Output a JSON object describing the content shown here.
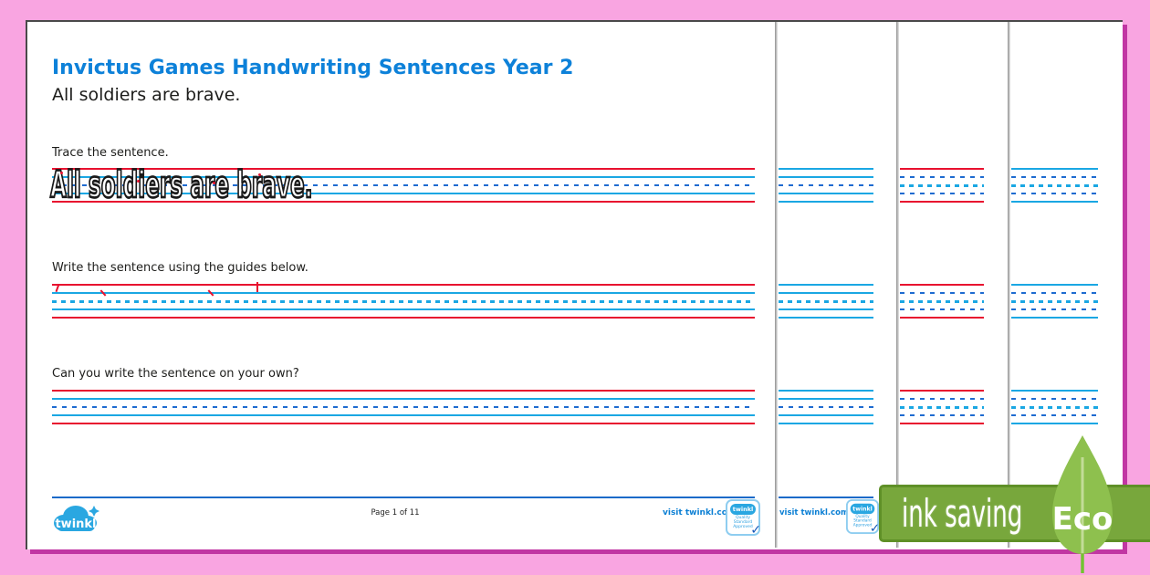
{
  "worksheet": {
    "title": "Invictus Games Handwriting Sentences Year 2",
    "sentence": "All soldiers are brave.",
    "trace_label": "Trace the sentence.",
    "trace_text": "All soldiers are brave.",
    "write_label": "Write the sentence using the guides below.",
    "own_label": "Can you write the sentence on your own?",
    "footer": {
      "logo_text": "twinkl",
      "page_info": "Page 1 of 11",
      "visit_link": "visit twinkl.com.au",
      "badge": {
        "logo_text": "twinkl",
        "caption_line1": "Quality Standard",
        "caption_line2": "Approved",
        "checkmark": "✓"
      }
    }
  },
  "stacked_pages": {
    "page2_visit_link": "visit twinkl.com.au"
  },
  "eco_badge": {
    "banner_text": "ink saving",
    "leaf_text": "Eco"
  },
  "colors": {
    "background_pink": "#f9a5e1",
    "shadow_magenta": "#c136a3",
    "title_blue": "#0d81d9",
    "guide_red": "#e8112f",
    "guide_blue": "#1aa7e3",
    "guide_dash_blue": "#1e6bd0",
    "footer_line_blue": "#1b6ac9",
    "brand_blue": "#2aa7e1",
    "banner_green": "#78a73c",
    "banner_border_green": "#5f9027",
    "leaf_green": "#8ec04e"
  }
}
